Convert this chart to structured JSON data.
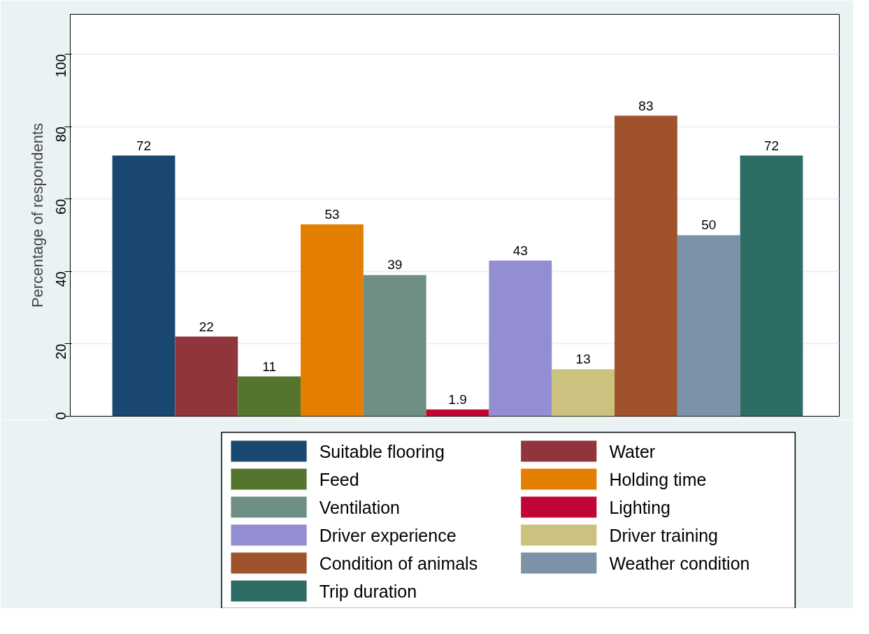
{
  "chart_data": {
    "type": "bar",
    "ylabel": "Percentage of respondents",
    "categories": [
      null
    ],
    "series": [
      {
        "name": "Suitable flooring",
        "color": "#1a476f",
        "values": [
          72
        ]
      },
      {
        "name": "Water",
        "color": "#90353b",
        "values": [
          22
        ]
      },
      {
        "name": "Feed",
        "color": "#55752f",
        "values": [
          11
        ]
      },
      {
        "name": "Holding time",
        "color": "#e37e00",
        "values": [
          53
        ]
      },
      {
        "name": "Ventilation",
        "color": "#6e8e84",
        "values": [
          39
        ]
      },
      {
        "name": "Lighting",
        "color": "#c10534",
        "values": [
          1.9
        ]
      },
      {
        "name": "Driver experience",
        "color": "#938dd2",
        "values": [
          43
        ]
      },
      {
        "name": "Driver training",
        "color": "#cac27e",
        "values": [
          13
        ]
      },
      {
        "name": "Condition of animals",
        "color": "#a0522d",
        "values": [
          83
        ]
      },
      {
        "name": "Weather condition",
        "color": "#7b92a8",
        "values": [
          50
        ]
      },
      {
        "name": "Trip duration",
        "color": "#2d6d66",
        "values": [
          72
        ]
      }
    ],
    "ylim": [
      0,
      111
    ],
    "yticks": [
      0,
      20,
      40,
      60,
      80,
      100
    ],
    "grid": "y",
    "legend": "bottom",
    "data_labels": true
  }
}
